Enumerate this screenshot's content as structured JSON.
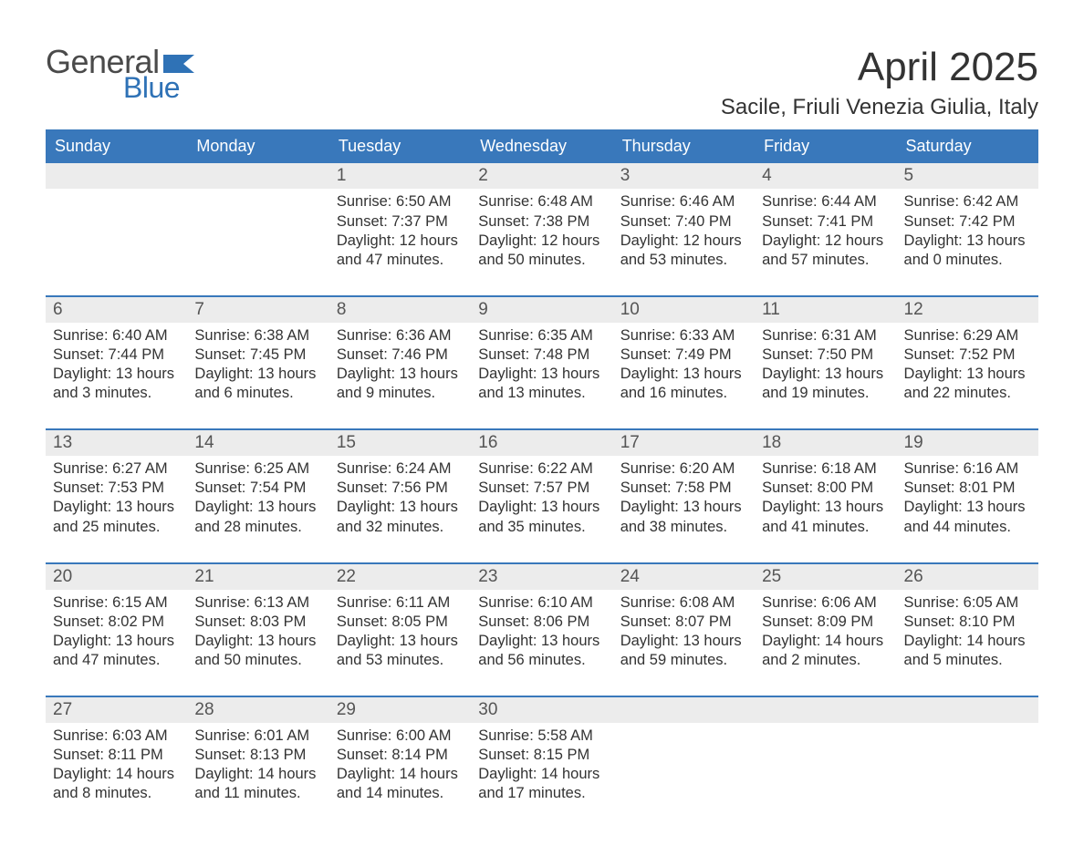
{
  "brand": {
    "word1": "General",
    "word2": "Blue",
    "word1_color": "#4a4a4a",
    "word2_color": "#2f72b6",
    "flag_color": "#2f72b6"
  },
  "title": "April 2025",
  "location": "Sacile, Friuli Venezia Giulia, Italy",
  "colors": {
    "header_bg": "#3978bb",
    "header_text": "#ffffff",
    "daynum_bg": "#ececec",
    "daynum_text": "#555555",
    "week_border": "#3978bb",
    "body_text": "#333333",
    "page_bg": "#ffffff"
  },
  "fonts": {
    "title_pt": 44,
    "location_pt": 24,
    "dow_pt": 18,
    "daynum_pt": 19,
    "body_pt": 16.5,
    "logo_pt": 36
  },
  "days_of_week": [
    "Sunday",
    "Monday",
    "Tuesday",
    "Wednesday",
    "Thursday",
    "Friday",
    "Saturday"
  ],
  "weeks": [
    {
      "nums": [
        "",
        "",
        "1",
        "2",
        "3",
        "4",
        "5"
      ],
      "cells": [
        {
          "sunrise": "",
          "sunset": "",
          "daylight": ""
        },
        {
          "sunrise": "",
          "sunset": "",
          "daylight": ""
        },
        {
          "sunrise": "Sunrise: 6:50 AM",
          "sunset": "Sunset: 7:37 PM",
          "daylight": "Daylight: 12 hours and 47 minutes."
        },
        {
          "sunrise": "Sunrise: 6:48 AM",
          "sunset": "Sunset: 7:38 PM",
          "daylight": "Daylight: 12 hours and 50 minutes."
        },
        {
          "sunrise": "Sunrise: 6:46 AM",
          "sunset": "Sunset: 7:40 PM",
          "daylight": "Daylight: 12 hours and 53 minutes."
        },
        {
          "sunrise": "Sunrise: 6:44 AM",
          "sunset": "Sunset: 7:41 PM",
          "daylight": "Daylight: 12 hours and 57 minutes."
        },
        {
          "sunrise": "Sunrise: 6:42 AM",
          "sunset": "Sunset: 7:42 PM",
          "daylight": "Daylight: 13 hours and 0 minutes."
        }
      ]
    },
    {
      "nums": [
        "6",
        "7",
        "8",
        "9",
        "10",
        "11",
        "12"
      ],
      "cells": [
        {
          "sunrise": "Sunrise: 6:40 AM",
          "sunset": "Sunset: 7:44 PM",
          "daylight": "Daylight: 13 hours and 3 minutes."
        },
        {
          "sunrise": "Sunrise: 6:38 AM",
          "sunset": "Sunset: 7:45 PM",
          "daylight": "Daylight: 13 hours and 6 minutes."
        },
        {
          "sunrise": "Sunrise: 6:36 AM",
          "sunset": "Sunset: 7:46 PM",
          "daylight": "Daylight: 13 hours and 9 minutes."
        },
        {
          "sunrise": "Sunrise: 6:35 AM",
          "sunset": "Sunset: 7:48 PM",
          "daylight": "Daylight: 13 hours and 13 minutes."
        },
        {
          "sunrise": "Sunrise: 6:33 AM",
          "sunset": "Sunset: 7:49 PM",
          "daylight": "Daylight: 13 hours and 16 minutes."
        },
        {
          "sunrise": "Sunrise: 6:31 AM",
          "sunset": "Sunset: 7:50 PM",
          "daylight": "Daylight: 13 hours and 19 minutes."
        },
        {
          "sunrise": "Sunrise: 6:29 AM",
          "sunset": "Sunset: 7:52 PM",
          "daylight": "Daylight: 13 hours and 22 minutes."
        }
      ]
    },
    {
      "nums": [
        "13",
        "14",
        "15",
        "16",
        "17",
        "18",
        "19"
      ],
      "cells": [
        {
          "sunrise": "Sunrise: 6:27 AM",
          "sunset": "Sunset: 7:53 PM",
          "daylight": "Daylight: 13 hours and 25 minutes."
        },
        {
          "sunrise": "Sunrise: 6:25 AM",
          "sunset": "Sunset: 7:54 PM",
          "daylight": "Daylight: 13 hours and 28 minutes."
        },
        {
          "sunrise": "Sunrise: 6:24 AM",
          "sunset": "Sunset: 7:56 PM",
          "daylight": "Daylight: 13 hours and 32 minutes."
        },
        {
          "sunrise": "Sunrise: 6:22 AM",
          "sunset": "Sunset: 7:57 PM",
          "daylight": "Daylight: 13 hours and 35 minutes."
        },
        {
          "sunrise": "Sunrise: 6:20 AM",
          "sunset": "Sunset: 7:58 PM",
          "daylight": "Daylight: 13 hours and 38 minutes."
        },
        {
          "sunrise": "Sunrise: 6:18 AM",
          "sunset": "Sunset: 8:00 PM",
          "daylight": "Daylight: 13 hours and 41 minutes."
        },
        {
          "sunrise": "Sunrise: 6:16 AM",
          "sunset": "Sunset: 8:01 PM",
          "daylight": "Daylight: 13 hours and 44 minutes."
        }
      ]
    },
    {
      "nums": [
        "20",
        "21",
        "22",
        "23",
        "24",
        "25",
        "26"
      ],
      "cells": [
        {
          "sunrise": "Sunrise: 6:15 AM",
          "sunset": "Sunset: 8:02 PM",
          "daylight": "Daylight: 13 hours and 47 minutes."
        },
        {
          "sunrise": "Sunrise: 6:13 AM",
          "sunset": "Sunset: 8:03 PM",
          "daylight": "Daylight: 13 hours and 50 minutes."
        },
        {
          "sunrise": "Sunrise: 6:11 AM",
          "sunset": "Sunset: 8:05 PM",
          "daylight": "Daylight: 13 hours and 53 minutes."
        },
        {
          "sunrise": "Sunrise: 6:10 AM",
          "sunset": "Sunset: 8:06 PM",
          "daylight": "Daylight: 13 hours and 56 minutes."
        },
        {
          "sunrise": "Sunrise: 6:08 AM",
          "sunset": "Sunset: 8:07 PM",
          "daylight": "Daylight: 13 hours and 59 minutes."
        },
        {
          "sunrise": "Sunrise: 6:06 AM",
          "sunset": "Sunset: 8:09 PM",
          "daylight": "Daylight: 14 hours and 2 minutes."
        },
        {
          "sunrise": "Sunrise: 6:05 AM",
          "sunset": "Sunset: 8:10 PM",
          "daylight": "Daylight: 14 hours and 5 minutes."
        }
      ]
    },
    {
      "nums": [
        "27",
        "28",
        "29",
        "30",
        "",
        "",
        ""
      ],
      "cells": [
        {
          "sunrise": "Sunrise: 6:03 AM",
          "sunset": "Sunset: 8:11 PM",
          "daylight": "Daylight: 14 hours and 8 minutes."
        },
        {
          "sunrise": "Sunrise: 6:01 AM",
          "sunset": "Sunset: 8:13 PM",
          "daylight": "Daylight: 14 hours and 11 minutes."
        },
        {
          "sunrise": "Sunrise: 6:00 AM",
          "sunset": "Sunset: 8:14 PM",
          "daylight": "Daylight: 14 hours and 14 minutes."
        },
        {
          "sunrise": "Sunrise: 5:58 AM",
          "sunset": "Sunset: 8:15 PM",
          "daylight": "Daylight: 14 hours and 17 minutes."
        },
        {
          "sunrise": "",
          "sunset": "",
          "daylight": ""
        },
        {
          "sunrise": "",
          "sunset": "",
          "daylight": ""
        },
        {
          "sunrise": "",
          "sunset": "",
          "daylight": ""
        }
      ]
    }
  ]
}
